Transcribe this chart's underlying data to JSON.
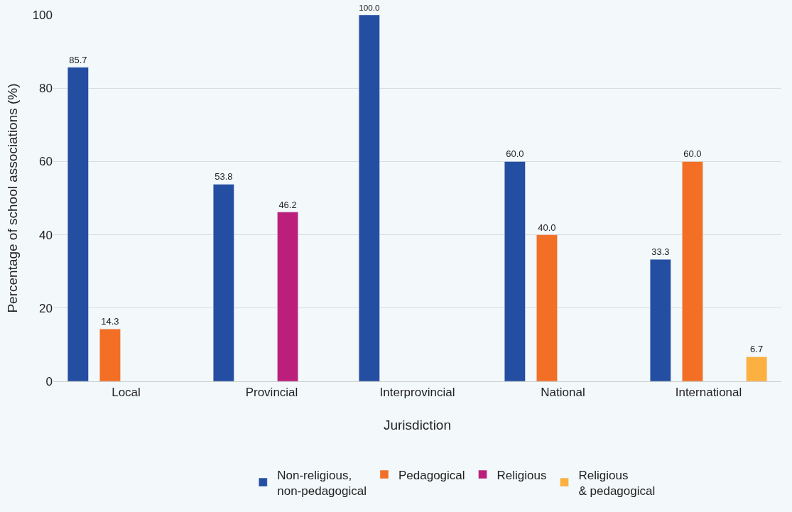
{
  "chart_data": {
    "type": "bar",
    "xlabel": "Jurisdiction",
    "ylabel": "Percentage of school associations (%)",
    "categories": [
      "Local",
      "Provincial",
      "Interprovincial",
      "National",
      "International"
    ],
    "series": [
      {
        "name": "Non-religious,\nnon-pedagogical",
        "color": "#234ea1",
        "values": [
          85.7,
          53.8,
          100.0,
          60.0,
          33.3
        ],
        "value_labels": [
          "85.7",
          "53.8",
          "100.0",
          "60.0",
          "33.3"
        ]
      },
      {
        "name": "Pedagogical",
        "color": "#f26f25",
        "values": [
          14.3,
          null,
          null,
          40.0,
          60.0
        ],
        "value_labels": [
          "14.3",
          null,
          null,
          "40.0",
          "60.0"
        ]
      },
      {
        "name": "Religious",
        "color": "#bb1f7b",
        "values": [
          null,
          46.2,
          null,
          null,
          null
        ],
        "value_labels": [
          null,
          "46.2",
          null,
          null,
          null
        ]
      },
      {
        "name": "Religious\n& pedagogical",
        "color": "#fbb040",
        "values": [
          null,
          null,
          null,
          null,
          6.7
        ],
        "value_labels": [
          null,
          null,
          null,
          null,
          "6.7"
        ]
      }
    ],
    "ylim": [
      0,
      100
    ],
    "yticks": [
      0,
      20,
      40,
      60,
      80,
      100
    ],
    "grid": "y",
    "legend": "bottom"
  }
}
